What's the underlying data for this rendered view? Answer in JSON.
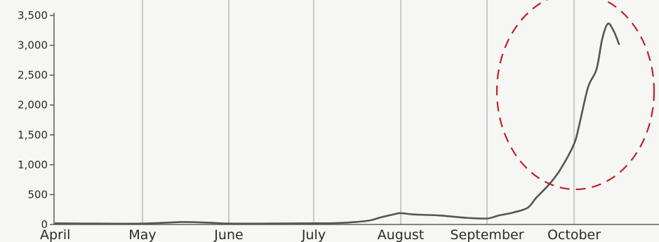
{
  "chart_data": {
    "type": "line",
    "title": "",
    "xlabel": "",
    "ylabel": "",
    "x_tick_labels": [
      "April",
      "May",
      "June",
      "July",
      "August",
      "September",
      "October"
    ],
    "y_tick_labels": [
      "0",
      "500",
      "1,000",
      "1,500",
      "2,000",
      "2,500",
      "3,000",
      "3,500"
    ],
    "ylim": [
      0,
      3500
    ],
    "grid": "vertical lines at month starts",
    "series": [
      {
        "color": "#555555",
        "x": [
          "2020-04-01",
          "2020-04-15",
          "2020-05-01",
          "2020-05-15",
          "2020-05-25",
          "2020-06-01",
          "2020-06-15",
          "2020-07-01",
          "2020-07-10",
          "2020-07-20",
          "2020-07-25",
          "2020-07-30",
          "2020-08-01",
          "2020-08-05",
          "2020-08-10",
          "2020-08-15",
          "2020-08-20",
          "2020-08-25",
          "2020-09-01",
          "2020-09-05",
          "2020-09-10",
          "2020-09-15",
          "2020-09-18",
          "2020-09-22",
          "2020-09-26",
          "2020-10-01",
          "2020-10-03",
          "2020-10-06",
          "2020-10-09",
          "2020-10-11",
          "2020-10-13",
          "2020-10-15",
          "2020-10-17"
        ],
        "values": [
          20,
          15,
          15,
          40,
          30,
          15,
          15,
          20,
          25,
          60,
          120,
          175,
          190,
          170,
          160,
          150,
          130,
          110,
          100,
          150,
          200,
          280,
          450,
          650,
          900,
          1350,
          1700,
          2300,
          2600,
          3100,
          3360,
          3250,
          3020
        ]
      }
    ],
    "annotations": [
      {
        "type": "dashed-ellipse",
        "color": "#c0202a",
        "note": "highlights October surge"
      }
    ]
  }
}
